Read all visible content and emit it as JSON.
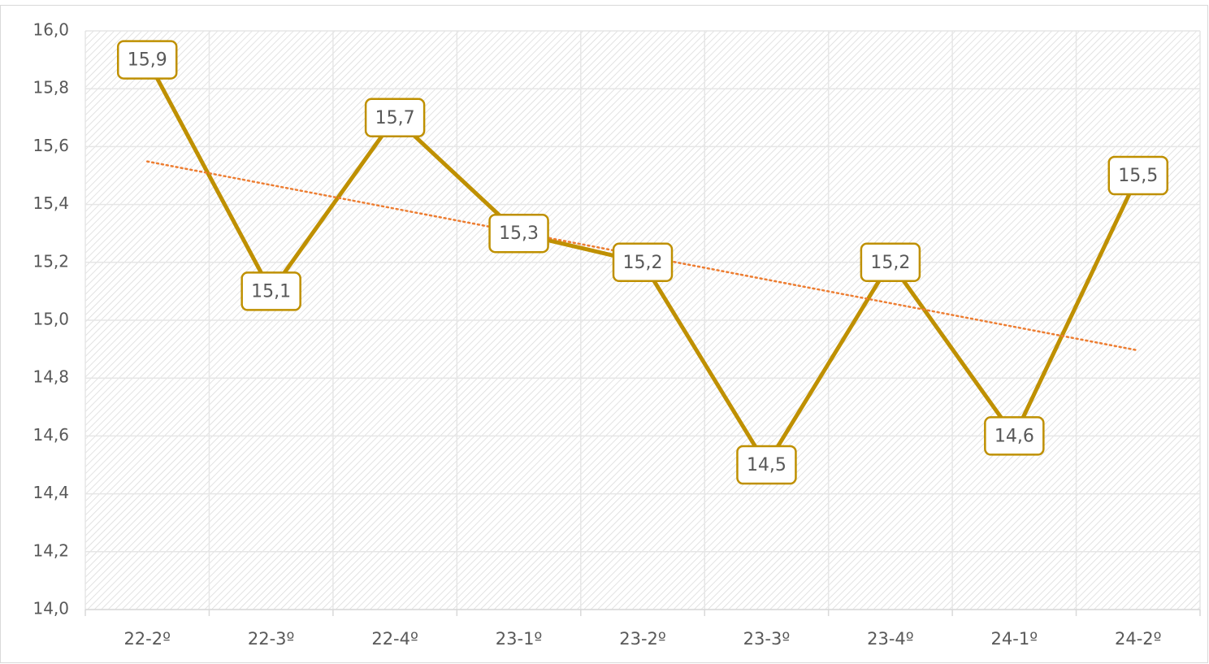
{
  "chart_data": {
    "type": "line",
    "categories": [
      "22-2º",
      "22-3º",
      "22-4º",
      "23-1º",
      "23-2º",
      "23-3º",
      "23-4º",
      "24-1º",
      "24-2º"
    ],
    "series": [
      {
        "color": "#bf9000",
        "values": [
          15.9,
          15.1,
          15.7,
          15.3,
          15.2,
          14.5,
          15.2,
          14.6,
          15.5
        ],
        "value_labels": [
          "15,9",
          "15,1",
          "15,7",
          "15,3",
          "15,2",
          "14,5",
          "15,2",
          "14,6",
          "15,5"
        ]
      }
    ],
    "ylim": [
      14,
      16
    ],
    "yticks": [
      {
        "value": 14,
        "label": "14,0"
      },
      {
        "value": 14.2,
        "label": "14,2"
      },
      {
        "value": 14.4,
        "label": "14,4"
      },
      {
        "value": 14.6,
        "label": "14,6"
      },
      {
        "value": 14.8,
        "label": "14,8"
      },
      {
        "value": 15,
        "label": "15,0"
      },
      {
        "value": 15.2,
        "label": "15,2"
      },
      {
        "value": 15.4,
        "label": "15,4"
      },
      {
        "value": 15.6,
        "label": "15,6"
      },
      {
        "value": 15.8,
        "label": "15,8"
      },
      {
        "value": 16,
        "label": "16,0"
      }
    ],
    "grid": true,
    "trendline": {
      "type": "linear",
      "color": "#ed7d31"
    }
  }
}
